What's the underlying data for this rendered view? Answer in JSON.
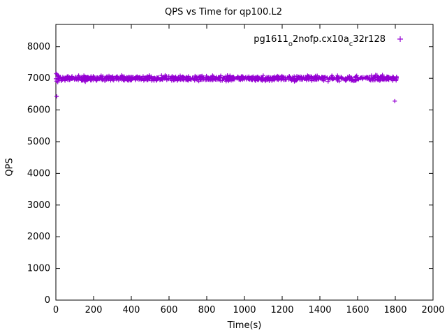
{
  "page": {
    "background": "#ffffff"
  },
  "chart_data": {
    "type": "scatter",
    "title": "QPS vs Time for qp100.L2",
    "xlabel": "Time(s)",
    "ylabel": "QPS",
    "xlim": [
      0,
      2000
    ],
    "ylim": [
      0,
      8700
    ],
    "xticks": [
      0,
      200,
      400,
      600,
      800,
      1000,
      1200,
      1400,
      1600,
      1800,
      2000
    ],
    "yticks": [
      0,
      1000,
      2000,
      3000,
      4000,
      5000,
      6000,
      7000,
      8000
    ],
    "grid": false,
    "legend_position": "top-right-inside",
    "series": [
      {
        "name": "pg1611_o2nofp.cx10a_c32r128",
        "name_segments": [
          {
            "t": "pg1611",
            "sub": false
          },
          {
            "t": "o",
            "sub": true
          },
          {
            "t": "2nofp.cx10a",
            "sub": false
          },
          {
            "t": "c",
            "sub": true
          },
          {
            "t": "32r128",
            "sub": false
          }
        ],
        "color": "#9400D3",
        "marker": "plus",
        "band": {
          "x_start": 0,
          "x_end": 1810,
          "count": 950,
          "y_mean": 7000,
          "y_jitter": 75,
          "seed": 1611
        },
        "outliers": [
          [
            4,
            6430
          ],
          [
            1797,
            6280
          ],
          [
            2,
            7150
          ],
          [
            6,
            7120
          ],
          [
            10,
            6880
          ],
          [
            3,
            6910
          ]
        ]
      }
    ]
  }
}
